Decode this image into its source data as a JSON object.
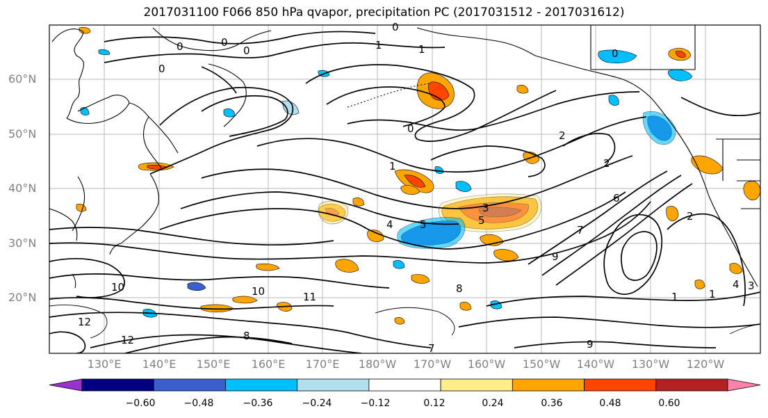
{
  "title": "2017031100 F066 850 hPa qvapor, precipitation PC (2017031512 - 2017031612)",
  "lat_labels": [
    "60°N",
    "50°N",
    "40°N",
    "30°N",
    "20°N"
  ],
  "lon_labels": [
    "130°E",
    "140°E",
    "150°E",
    "160°E",
    "170°E",
    "180°W",
    "170°W",
    "160°W",
    "150°W",
    "140°W",
    "130°W",
    "120°W"
  ],
  "colorbar": {
    "colors": [
      "#9a32cd",
      "#000080",
      "#3a5fcd",
      "#00bfff",
      "#b2dfee",
      "#ffffff",
      "#ffec8b",
      "#ffa500",
      "#ff4500",
      "#b22222",
      "#ff82ab"
    ],
    "ticks": [
      "−0.60",
      "−0.48",
      "−0.36",
      "−0.24",
      "−0.12",
      "0.12",
      "0.24",
      "0.36",
      "0.48",
      "0.60"
    ]
  },
  "contour_labels": [
    "0",
    "0",
    "0",
    "0",
    "1",
    "1",
    "0",
    "1",
    "2",
    "2",
    "3",
    "5",
    "4",
    "5",
    "6",
    "7",
    "7",
    "8",
    "8",
    "9",
    "9",
    "10",
    "10",
    "11",
    "12",
    "12",
    "1",
    "1",
    "4",
    "2",
    "3",
    "0",
    "0"
  ],
  "colors": {
    "land": "#000000",
    "grid": "#b0b0b0",
    "contour": "#000000"
  }
}
